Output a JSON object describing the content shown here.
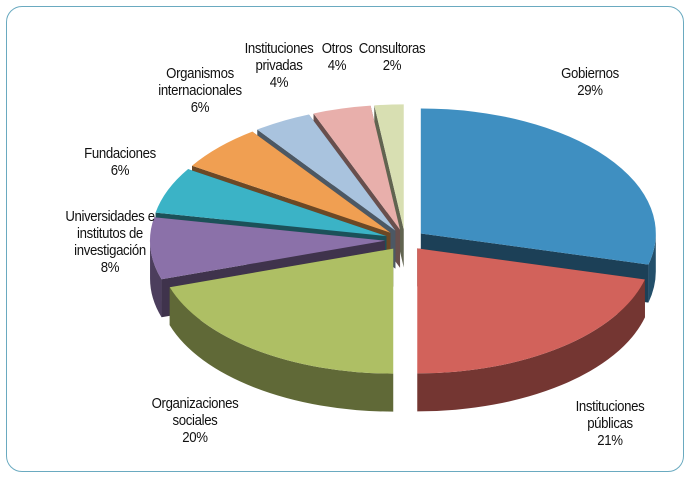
{
  "chart_data": {
    "type": "pie3d",
    "categories": [
      "Gobiernos",
      "Instituciones públicas",
      "Organizaciones sociales",
      "Universidades e institutos de investigación",
      "Fundaciones",
      "Organismos internacionales",
      "Instituciones privadas",
      "Otros",
      "Consultoras"
    ],
    "values": [
      29,
      21,
      20,
      8,
      6,
      6,
      4,
      4,
      2
    ],
    "value_labels": [
      "29%",
      "21%",
      "20%",
      "8%",
      "6%",
      "6%",
      "4%",
      "4%",
      "2%"
    ],
    "colors": [
      "#3f8fc1",
      "#d2625b",
      "#aebf64",
      "#8b71a9",
      "#3bb3c6",
      "#f09f52",
      "#a9c3de",
      "#e8afab",
      "#d8dfb2"
    ]
  }
}
